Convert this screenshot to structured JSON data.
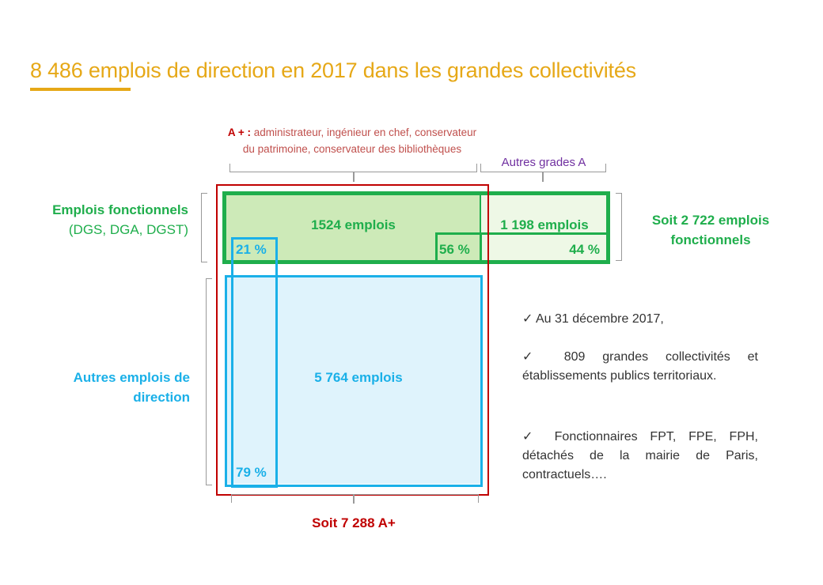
{
  "title": "8 486 emplois de direction en 2017 dans les grandes collectivités",
  "caption_aplus": {
    "prefix": "A + :",
    "text": "administrateur, ingénieur en chef, conservateur du patrimoine, conservateur des bibliothèques"
  },
  "caption_autres": "Autres grades A",
  "left_labels": {
    "fonctionnels_bold": "Emplois fonctionnels",
    "fonctionnels_rest": "(DGS, DGA, DGST)",
    "autres": "Autres emplois de direction"
  },
  "cells": {
    "aplus_fonct": "1524 emplois",
    "autres_fonct": "1 198 emplois",
    "pct_21": "21 %",
    "pct_56": "56 %",
    "pct_44": "44 %",
    "aplus_autres": "5 764 emplois",
    "pct_79": "79 %"
  },
  "total_fonctionnels": "Soit 2 722 emplois fonctionnels",
  "total_aplus": "Soit 7 288 A+",
  "notes": [
    "Au 31 décembre 2017,",
    "809 grandes collectivités et établissements publics territoriaux.",
    "Fonctionnaires FPT, FPE, FPH, détachés de la mairie de Paris, contractuels…."
  ],
  "colors": {
    "title": "#e6a817",
    "green": "#1fae4c",
    "blue": "#1ab0e8",
    "red": "#c00000",
    "purple": "#7030a0"
  }
}
